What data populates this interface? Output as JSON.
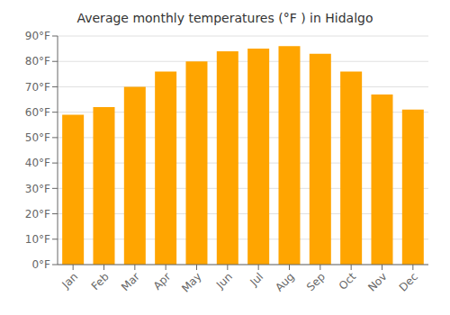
{
  "chart_data": {
    "type": "bar",
    "title": "Average monthly temperatures (°F ) in Hidalgo",
    "categories": [
      "Jan",
      "Feb",
      "Mar",
      "Apr",
      "May",
      "Jun",
      "Jul",
      "Aug",
      "Sep",
      "Oct",
      "Nov",
      "Dec"
    ],
    "values": [
      59,
      62,
      70,
      76,
      80,
      84,
      85,
      86,
      83,
      76,
      67,
      61
    ],
    "color": "#FFA500",
    "ylim": [
      0,
      90
    ],
    "yticks": [
      {
        "value": 0,
        "label": "0°F"
      },
      {
        "value": 10,
        "label": "10°F"
      },
      {
        "value": 20,
        "label": "20°F"
      },
      {
        "value": 30,
        "label": "30°F"
      },
      {
        "value": 40,
        "label": "40°F"
      },
      {
        "value": 50,
        "label": "50°F"
      },
      {
        "value": 60,
        "label": "60°F"
      },
      {
        "value": 70,
        "label": "70°F"
      },
      {
        "value": 80,
        "label": "80°F"
      },
      {
        "value": 90,
        "label": "90°F"
      }
    ],
    "grid": true
  }
}
